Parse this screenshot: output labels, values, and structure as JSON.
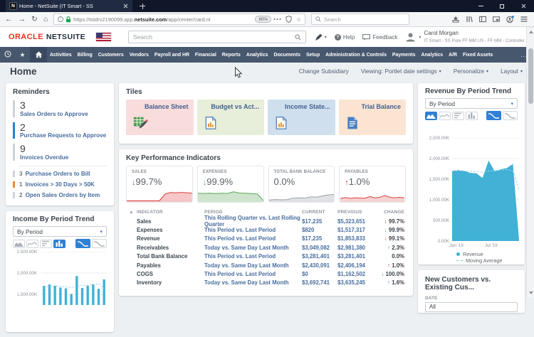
{
  "glyphs": {
    "caret": "▾",
    "back": "←",
    "forward": "→",
    "reload": "↻",
    "home": "⌂",
    "star_outline": "☆",
    "nav_star": "★",
    "question": "?",
    "info": "i",
    "more": "...",
    "favicon": "N"
  },
  "browser": {
    "tab_title": "Home - NetSuite (IT Smart - SS",
    "url": {
      "prefix": "https://tstdrv2190099.app.",
      "domain": "netsuite.com",
      "path": "/app/center/card.nl",
      "zoom_badge": "80%"
    },
    "search_placeholder": "Search"
  },
  "ns_header": {
    "brand_oracle": "ORACLE",
    "brand_netsuite": "NETSUITE",
    "search_placeholder": "Search",
    "help_label": "Help",
    "feedback_label": "Feedback",
    "user_name": "Carol Morgan",
    "user_role": "IT Smart - SS Pure FF MM US - FF MM - Controller."
  },
  "nav": {
    "items": [
      "Activities",
      "Billing",
      "Customers",
      "Vendors",
      "Payroll and HR",
      "Financial",
      "Reports",
      "Analytics",
      "Documents",
      "Setup",
      "Administration & Controls",
      "Payments",
      "Analytics",
      "A/R",
      "Fixed Assets"
    ]
  },
  "home_bar": {
    "title": "Home",
    "change_subsidiary": "Change Subsidiary",
    "viewing": "Viewing: Portlet date settings",
    "personalize": "Personalize",
    "layout": "Layout"
  },
  "reminders": {
    "title": "Reminders",
    "large_items": [
      {
        "count": "3",
        "label": "Sales Orders to Approve",
        "accent_style": "border-left-color:#cdd2d8"
      },
      {
        "count": "2",
        "label": "Purchase Requests to Approve",
        "accent_style": "border-left-color:#2a7fc9"
      },
      {
        "count": "9",
        "label": "Invoices Overdue",
        "accent_style": "border-left-color:#cdd2d8"
      }
    ],
    "small_items": [
      {
        "count": "3",
        "label": "Purchase Orders to Bill",
        "accent_style": "border-left-color:#cdd2d8"
      },
      {
        "count": "1",
        "label": "Invoices > 30 Days > 50K",
        "accent_style": "border-left-color:#f08c2d"
      },
      {
        "count": "2",
        "label": "Open Sales Orders by Item",
        "accent_style": "border-left-color:#cdd2d8"
      }
    ]
  },
  "tiles": {
    "title": "Tiles",
    "items": [
      {
        "label": "Balance Sheet",
        "bg_style": "background:#f9dcdc"
      },
      {
        "label": "Budget vs Act...",
        "bg_style": "background:#e7eed9"
      },
      {
        "label": "Income State...",
        "bg_style": "background:#cfdfee"
      },
      {
        "label": "Trial Balance",
        "bg_style": "background:#fbe5d2"
      }
    ]
  },
  "kpi": {
    "title": "Key Performance Indicators",
    "cards": [
      {
        "label": "SALES",
        "value": "99.7%",
        "arrow": "↓",
        "arrow_style": "color:#cf3e3c",
        "spark": {
          "values": [
            4,
            4,
            4,
            4,
            4,
            4,
            4,
            58,
            72,
            70,
            73,
            70,
            67
          ],
          "line": "#d8413f",
          "fill": "#f1a2a1",
          "baseline": true
        }
      },
      {
        "label": "EXPENSES",
        "value": "99.9%",
        "arrow": "↓",
        "arrow_style": "color:#56a758",
        "spark": {
          "values": [
            66,
            64,
            66,
            63,
            66,
            64,
            78,
            68,
            66,
            63,
            60,
            6
          ],
          "line": "#5aa85c",
          "fill": "#aed2ab",
          "baseline": false
        }
      },
      {
        "label": "TOTAL BANK BALANCE",
        "value": "0.0%",
        "arrow": "",
        "arrow_style": "",
        "spark": {
          "values": [
            10,
            14,
            12,
            13,
            24,
            28,
            26,
            36,
            34,
            44,
            52,
            56
          ],
          "line": "#9aa0a5",
          "fill": "#cdd1d5",
          "baseline": true
        }
      },
      {
        "label": "PAYABLES",
        "value": "1.0%",
        "arrow": "↑",
        "arrow_style": "color:#cf3e3c",
        "spark": {
          "values": [
            22,
            30,
            24,
            28,
            26,
            25,
            38,
            28,
            32,
            46,
            34,
            28,
            32,
            28
          ],
          "line": "#d8413f",
          "fill": "#efb5b4",
          "baseline": true
        }
      }
    ],
    "table": {
      "headers": {
        "indicator": "INDICATOR",
        "period": "PERIOD",
        "current": "CURRENT",
        "previous": "PREVIOUS",
        "change": "CHANGE"
      },
      "rows": [
        {
          "indicator": "Sales",
          "period": "This Rolling Quarter vs. Last Rolling Quarter",
          "current": "$17,235",
          "previous": "$5,323,651",
          "arrow": "↓",
          "arrow_style": "color:#cf3e3c",
          "change": "99.7%"
        },
        {
          "indicator": "Expenses",
          "period": "This Period vs. Last Period",
          "current": "$820",
          "previous": "$1,517,317",
          "arrow": "↓",
          "arrow_style": "color:#56a758",
          "change": "99.9%"
        },
        {
          "indicator": "Revenue",
          "period": "This Period vs. Last Period",
          "current": "$17,235",
          "previous": "$1,853,833",
          "arrow": "↓",
          "arrow_style": "color:#cf3e3c",
          "change": "99.1%"
        },
        {
          "indicator": "Receivables",
          "period": "Today vs. Same Day Last Month",
          "current": "$3,049,082",
          "previous": "$2,981,380",
          "arrow": "↑",
          "arrow_style": "color:#3f9e48",
          "change": "2.3%"
        },
        {
          "indicator": "Total Bank Balance",
          "period": "This Period vs. Last Period",
          "current": "$3,281,401",
          "previous": "$3,281,401",
          "arrow": "",
          "arrow_style": "",
          "change": "0.0%"
        },
        {
          "indicator": "Payables",
          "period": "Today vs. Same Day Last Month",
          "current": "$2,430,091",
          "previous": "$2,406,194",
          "arrow": "↑",
          "arrow_style": "color:#cf3e3c",
          "change": "1.0%"
        },
        {
          "indicator": "COGS",
          "period": "This Period vs. Last Period",
          "current": "$0",
          "previous": "$1,162,502",
          "arrow": "↓",
          "arrow_style": "color:#3f9e48",
          "change": "100.0%"
        },
        {
          "indicator": "Inventory",
          "period": "Today vs. Same Day Last Month",
          "current": "$3,692,741",
          "previous": "$3,635,245",
          "arrow": "↑",
          "arrow_style": "color:#3f9e48",
          "change": "1.6%"
        }
      ]
    }
  },
  "income_trend": {
    "title": "Income By Period Trend",
    "selector": "By Period",
    "axis_labels": [
      "2,500.00K",
      "2,000.00K",
      "1,500.00K"
    ],
    "chart": {
      "type": "bar",
      "color": "#41b1d6",
      "ymax": 2500,
      "ymin": 1250,
      "grid": [
        2500,
        2000,
        1500
      ],
      "values": [
        1700,
        1730,
        1700,
        1660,
        1640,
        1510,
        1930,
        1650,
        1700,
        1740,
        1630,
        1850
      ],
      "avg": [
        1680,
        1695,
        1700,
        1690,
        1675,
        1660,
        1690,
        1705,
        1715,
        1730,
        1745,
        1640
      ],
      "avg_color": "#8fd0e4"
    }
  },
  "revenue_trend": {
    "title": "Revenue By Period Trend",
    "selector": "By Period",
    "axis_labels": [
      "2,500.00K",
      "2,000.00K",
      "1,500.00K",
      "1,000.00K",
      "500.00K",
      "0.00K"
    ],
    "x_labels": [
      "Jan '19",
      "Jul '19"
    ],
    "legend": [
      {
        "label": "Revenue"
      },
      {
        "label": "Moving Average"
      }
    ],
    "chart": {
      "type": "area",
      "color": "#41b1d6",
      "ymax": 2500,
      "ymin": 0,
      "grid": [
        2500,
        2000,
        1500,
        1000,
        500,
        0
      ],
      "values": [
        1700,
        1720,
        1700,
        1650,
        1640,
        1530,
        1950,
        1690,
        1740,
        1770,
        1870,
        20
      ],
      "avg": [
        1700,
        1705,
        1700,
        1690,
        1680,
        1670,
        1700,
        1710,
        1720,
        1730,
        1700,
        1230
      ],
      "avg_color": "#9bd4e6"
    }
  },
  "new_customers": {
    "title": "New Customers vs. Existing Cus...",
    "date_label": "DATE",
    "date_value": "All"
  }
}
